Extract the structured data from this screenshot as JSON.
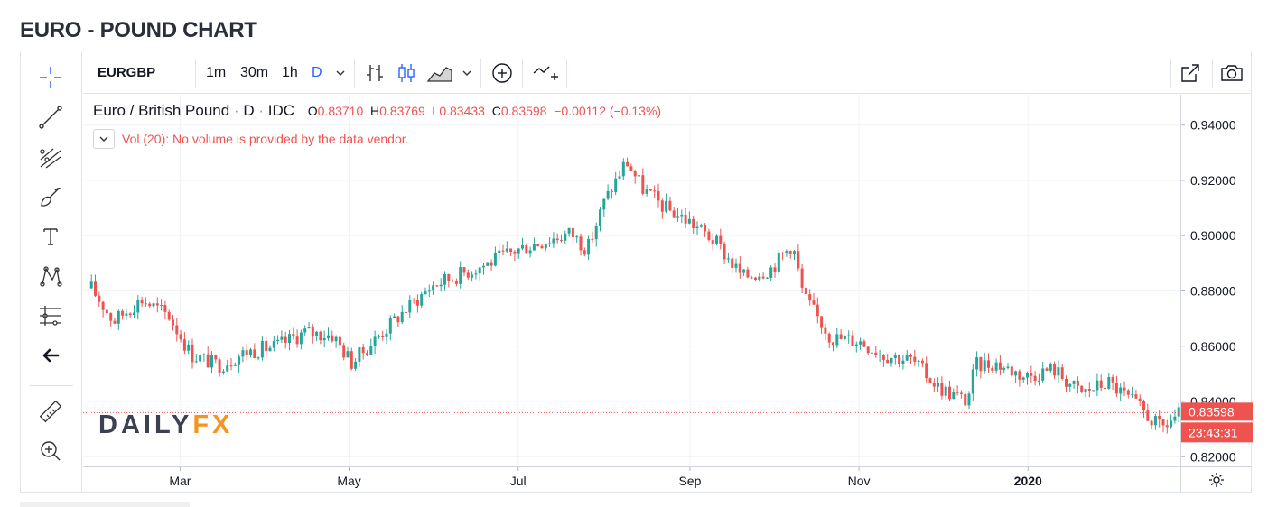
{
  "page": {
    "title": "EURO - POUND CHART"
  },
  "toolbar": {
    "symbol": "EURGBP",
    "intervals": [
      "1m",
      "30m",
      "1h",
      "D"
    ],
    "active_interval": "D"
  },
  "legend": {
    "name": "Euro / British Pound",
    "interval": "D",
    "source": "IDC",
    "open_label": "O",
    "open": "0.83710",
    "high_label": "H",
    "high": "0.83769",
    "low_label": "L",
    "low": "0.83433",
    "close_label": "C",
    "close": "0.83598",
    "change": "−0.00112 (−0.13%)"
  },
  "volume_note": "Vol (20): No volume is provided by the data vendor.",
  "price_badge": {
    "price": "0.83598",
    "countdown": "23:43:31"
  },
  "logo": {
    "part1": "DAILY",
    "part2": "FX"
  },
  "colors": {
    "up": "#26a69a",
    "down": "#ef5350",
    "accent": "#2962ff",
    "logo_orange": "#f7931e"
  },
  "icons": [
    "crosshair-icon",
    "trend-line-icon",
    "pitchfork-icon",
    "brush-icon",
    "text-icon",
    "pattern-icon",
    "measure-lines-icon",
    "arrow-left-icon",
    "ruler-icon",
    "zoom-in-icon",
    "bar-style-icon",
    "candle-style-icon",
    "area-style-icon",
    "indicator-add-icon",
    "compare-icon",
    "popout-icon",
    "camera-icon",
    "gear-icon"
  ],
  "chart_data": {
    "type": "candlestick",
    "title": "EURO - POUND CHART",
    "x_tick_labels": [
      "Mar",
      "May",
      "Jul",
      "Sep",
      "Nov",
      "2020",
      "Mar"
    ],
    "y_tick_labels": [
      "0.94000",
      "0.92000",
      "0.90000",
      "0.88000",
      "0.86000",
      "0.84000",
      "0.82000"
    ],
    "ylim": [
      0.8165,
      0.951
    ],
    "last_price": 0.83598,
    "grid": true,
    "close_path": [
      [
        "2019-01-28",
        0.881
      ],
      [
        "2019-02-05",
        0.869
      ],
      [
        "2019-02-15",
        0.877
      ],
      [
        "2019-02-25",
        0.871
      ],
      [
        "2019-03-05",
        0.857
      ],
      [
        "2019-03-15",
        0.853
      ],
      [
        "2019-03-25",
        0.858
      ],
      [
        "2019-04-05",
        0.86
      ],
      [
        "2019-04-15",
        0.865
      ],
      [
        "2019-04-25",
        0.864
      ],
      [
        "2019-05-02",
        0.854
      ],
      [
        "2019-05-10",
        0.862
      ],
      [
        "2019-05-20",
        0.872
      ],
      [
        "2019-05-31",
        0.882
      ],
      [
        "2019-06-10",
        0.886
      ],
      [
        "2019-06-20",
        0.89
      ],
      [
        "2019-07-01",
        0.895
      ],
      [
        "2019-07-10",
        0.898
      ],
      [
        "2019-07-20",
        0.901
      ],
      [
        "2019-07-26",
        0.895
      ],
      [
        "2019-08-01",
        0.912
      ],
      [
        "2019-08-09",
        0.927
      ],
      [
        "2019-08-15",
        0.917
      ],
      [
        "2019-08-23",
        0.91
      ],
      [
        "2019-09-01",
        0.905
      ],
      [
        "2019-09-10",
        0.898
      ],
      [
        "2019-09-20",
        0.885
      ],
      [
        "2019-09-30",
        0.888
      ],
      [
        "2019-10-08",
        0.897
      ],
      [
        "2019-10-12",
        0.878
      ],
      [
        "2019-10-22",
        0.863
      ],
      [
        "2019-11-01",
        0.862
      ],
      [
        "2019-11-10",
        0.857
      ],
      [
        "2019-11-20",
        0.855
      ],
      [
        "2019-11-30",
        0.845
      ],
      [
        "2019-12-10",
        0.84
      ],
      [
        "2019-12-13",
        0.853
      ],
      [
        "2019-12-20",
        0.854
      ],
      [
        "2019-12-31",
        0.849
      ],
      [
        "2020-01-10",
        0.852
      ],
      [
        "2020-01-20",
        0.843
      ],
      [
        "2020-01-30",
        0.847
      ],
      [
        "2020-02-10",
        0.838
      ],
      [
        "2020-02-18",
        0.83
      ],
      [
        "2020-02-25",
        0.836
      ]
    ]
  }
}
